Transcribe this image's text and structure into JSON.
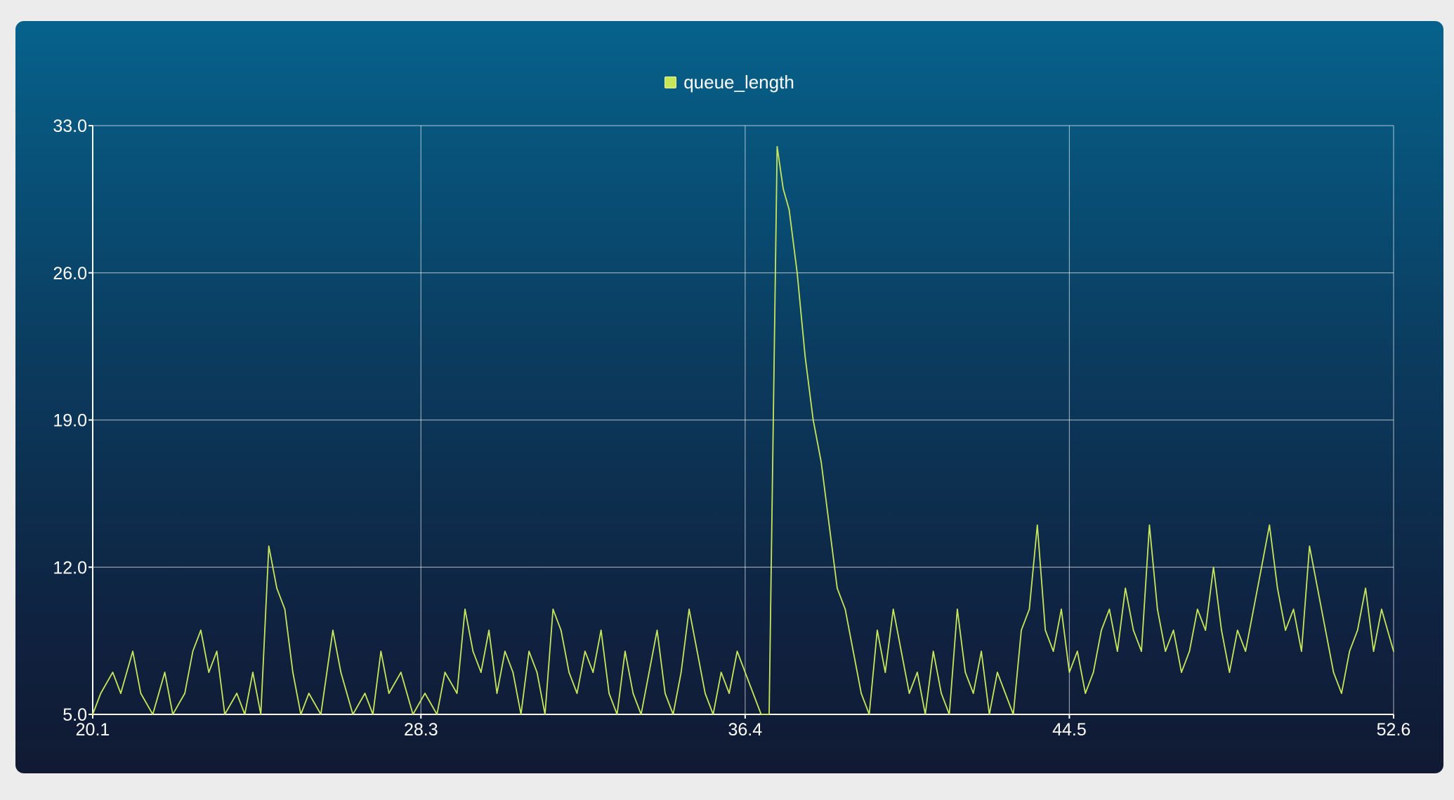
{
  "chart_data": {
    "type": "line",
    "title": "",
    "xlabel": "",
    "ylabel": "",
    "xlim": [
      20.1,
      52.6
    ],
    "ylim": [
      5.0,
      33.0
    ],
    "x_ticks": [
      "20.1",
      "28.3",
      "36.4",
      "44.5",
      "52.6"
    ],
    "y_ticks": [
      "5.0",
      "12.0",
      "19.0",
      "26.0",
      "33.0"
    ],
    "grid": true,
    "legend_position": "top-center",
    "series": [
      {
        "name": "queue_length",
        "color": "#c8e65a",
        "points": [
          [
            20.1,
            5
          ],
          [
            20.3,
            6
          ],
          [
            20.6,
            7
          ],
          [
            20.8,
            6
          ],
          [
            21.1,
            8
          ],
          [
            21.3,
            6
          ],
          [
            21.6,
            5
          ],
          [
            21.9,
            7
          ],
          [
            22.1,
            5
          ],
          [
            22.4,
            6
          ],
          [
            22.6,
            8
          ],
          [
            22.8,
            9
          ],
          [
            23.0,
            7
          ],
          [
            23.2,
            8
          ],
          [
            23.4,
            5
          ],
          [
            23.7,
            6
          ],
          [
            23.9,
            5
          ],
          [
            24.1,
            7
          ],
          [
            24.3,
            5
          ],
          [
            24.5,
            13
          ],
          [
            24.7,
            11
          ],
          [
            24.9,
            10
          ],
          [
            25.1,
            7
          ],
          [
            25.3,
            5
          ],
          [
            25.5,
            6
          ],
          [
            25.8,
            5
          ],
          [
            26.1,
            9
          ],
          [
            26.3,
            7
          ],
          [
            26.6,
            5
          ],
          [
            26.9,
            6
          ],
          [
            27.1,
            5
          ],
          [
            27.3,
            8
          ],
          [
            27.5,
            6
          ],
          [
            27.8,
            7
          ],
          [
            28.1,
            5
          ],
          [
            28.4,
            6
          ],
          [
            28.7,
            5
          ],
          [
            28.9,
            7
          ],
          [
            29.2,
            6
          ],
          [
            29.4,
            10
          ],
          [
            29.6,
            8
          ],
          [
            29.8,
            7
          ],
          [
            30.0,
            9
          ],
          [
            30.2,
            6
          ],
          [
            30.4,
            8
          ],
          [
            30.6,
            7
          ],
          [
            30.8,
            5
          ],
          [
            31.0,
            8
          ],
          [
            31.2,
            7
          ],
          [
            31.4,
            5
          ],
          [
            31.6,
            10
          ],
          [
            31.8,
            9
          ],
          [
            32.0,
            7
          ],
          [
            32.2,
            6
          ],
          [
            32.4,
            8
          ],
          [
            32.6,
            7
          ],
          [
            32.8,
            9
          ],
          [
            33.0,
            6
          ],
          [
            33.2,
            5
          ],
          [
            33.4,
            8
          ],
          [
            33.6,
            6
          ],
          [
            33.8,
            5
          ],
          [
            34.0,
            7
          ],
          [
            34.2,
            9
          ],
          [
            34.4,
            6
          ],
          [
            34.6,
            5
          ],
          [
            34.8,
            7
          ],
          [
            35.0,
            10
          ],
          [
            35.2,
            8
          ],
          [
            35.4,
            6
          ],
          [
            35.6,
            5
          ],
          [
            35.8,
            7
          ],
          [
            36.0,
            6
          ],
          [
            36.2,
            8
          ],
          [
            36.4,
            7
          ],
          [
            36.6,
            6
          ],
          [
            36.8,
            5
          ],
          [
            37.0,
            5
          ],
          [
            37.2,
            32
          ],
          [
            37.35,
            30
          ],
          [
            37.5,
            29
          ],
          [
            37.7,
            26
          ],
          [
            37.9,
            22
          ],
          [
            38.1,
            19
          ],
          [
            38.3,
            17
          ],
          [
            38.5,
            14
          ],
          [
            38.7,
            11
          ],
          [
            38.9,
            10
          ],
          [
            39.1,
            8
          ],
          [
            39.3,
            6
          ],
          [
            39.5,
            5
          ],
          [
            39.7,
            9
          ],
          [
            39.9,
            7
          ],
          [
            40.1,
            10
          ],
          [
            40.3,
            8
          ],
          [
            40.5,
            6
          ],
          [
            40.7,
            7
          ],
          [
            40.9,
            5
          ],
          [
            41.1,
            8
          ],
          [
            41.3,
            6
          ],
          [
            41.5,
            5
          ],
          [
            41.7,
            10
          ],
          [
            41.9,
            7
          ],
          [
            42.1,
            6
          ],
          [
            42.3,
            8
          ],
          [
            42.5,
            5
          ],
          [
            42.7,
            7
          ],
          [
            42.9,
            6
          ],
          [
            43.1,
            5
          ],
          [
            43.3,
            9
          ],
          [
            43.5,
            10
          ],
          [
            43.7,
            14
          ],
          [
            43.9,
            9
          ],
          [
            44.1,
            8
          ],
          [
            44.3,
            10
          ],
          [
            44.5,
            7
          ],
          [
            44.7,
            8
          ],
          [
            44.9,
            6
          ],
          [
            45.1,
            7
          ],
          [
            45.3,
            9
          ],
          [
            45.5,
            10
          ],
          [
            45.7,
            8
          ],
          [
            45.9,
            11
          ],
          [
            46.1,
            9
          ],
          [
            46.3,
            8
          ],
          [
            46.5,
            14
          ],
          [
            46.7,
            10
          ],
          [
            46.9,
            8
          ],
          [
            47.1,
            9
          ],
          [
            47.3,
            7
          ],
          [
            47.5,
            8
          ],
          [
            47.7,
            10
          ],
          [
            47.9,
            9
          ],
          [
            48.1,
            12
          ],
          [
            48.3,
            9
          ],
          [
            48.5,
            7
          ],
          [
            48.7,
            9
          ],
          [
            48.9,
            8
          ],
          [
            49.1,
            10
          ],
          [
            49.3,
            12
          ],
          [
            49.5,
            14
          ],
          [
            49.7,
            11
          ],
          [
            49.9,
            9
          ],
          [
            50.1,
            10
          ],
          [
            50.3,
            8
          ],
          [
            50.5,
            13
          ],
          [
            50.7,
            11
          ],
          [
            50.9,
            9
          ],
          [
            51.1,
            7
          ],
          [
            51.3,
            6
          ],
          [
            51.5,
            8
          ],
          [
            51.7,
            9
          ],
          [
            51.9,
            11
          ],
          [
            52.1,
            8
          ],
          [
            52.3,
            10
          ],
          [
            52.6,
            8
          ]
        ]
      }
    ]
  }
}
